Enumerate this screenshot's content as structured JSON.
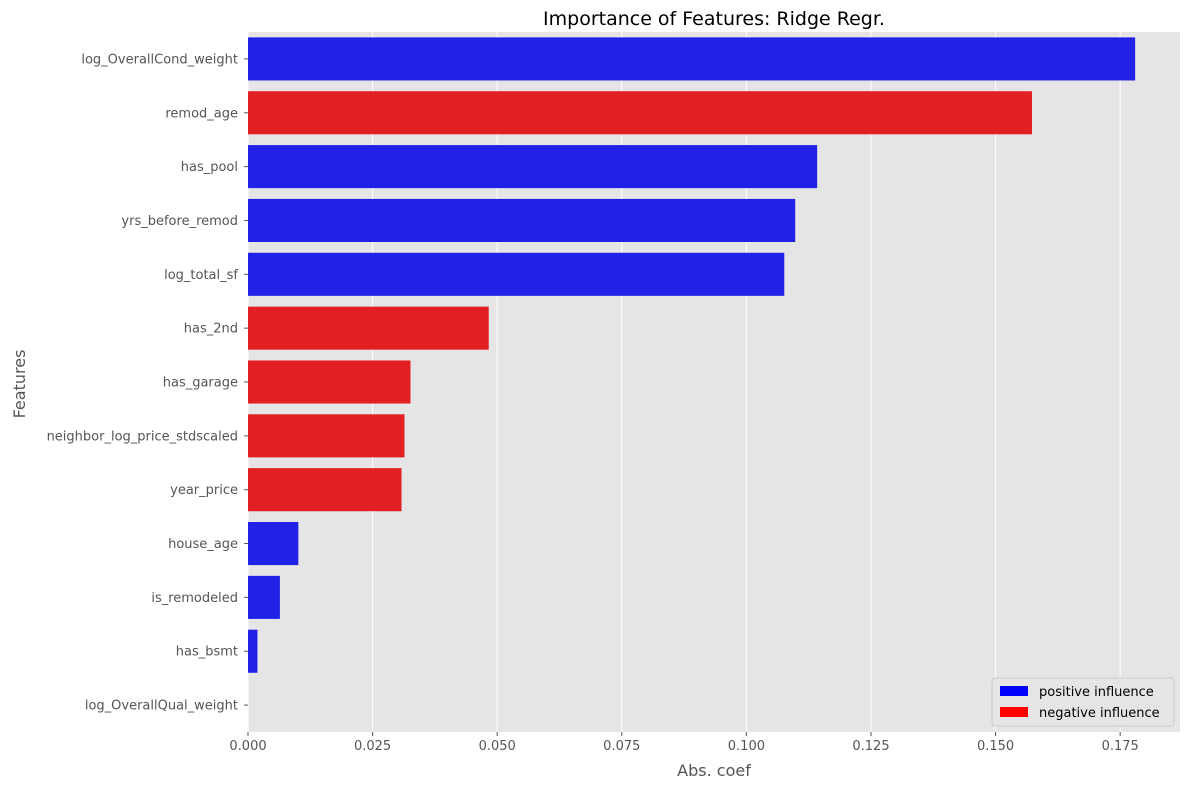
{
  "chart_data": {
    "type": "bar",
    "orientation": "horizontal",
    "title": "Importance of Features: Ridge Regr.",
    "xlabel": "Abs. coef",
    "ylabel": "Features",
    "xlim": [
      0,
      0.187
    ],
    "xticks": [
      "0.000",
      "0.025",
      "0.050",
      "0.075",
      "0.100",
      "0.125",
      "0.150",
      "0.175"
    ],
    "grid": true,
    "legend_position": "lower-right",
    "colors": {
      "positive": "#2222e6",
      "negative": "#e21f22",
      "background": "#e5e5e5",
      "grid": "#ffffff"
    },
    "legend": [
      {
        "label": "positive influence",
        "color": "#0000ff"
      },
      {
        "label": "negative influence",
        "color": "#ff0000"
      }
    ],
    "bars": [
      {
        "feature": "log_OverallCond_weight",
        "value": 0.178,
        "influence": "positive"
      },
      {
        "feature": "remod_age",
        "value": 0.1573,
        "influence": "negative"
      },
      {
        "feature": "has_pool",
        "value": 0.1142,
        "influence": "positive"
      },
      {
        "feature": "yrs_before_remod",
        "value": 0.1098,
        "influence": "positive"
      },
      {
        "feature": "log_total_sf",
        "value": 0.1076,
        "influence": "positive"
      },
      {
        "feature": "has_2nd",
        "value": 0.0483,
        "influence": "negative"
      },
      {
        "feature": "has_garage",
        "value": 0.0326,
        "influence": "negative"
      },
      {
        "feature": "neighbor_log_price_stdscaled",
        "value": 0.0314,
        "influence": "negative"
      },
      {
        "feature": "year_price",
        "value": 0.0308,
        "influence": "negative"
      },
      {
        "feature": "house_age",
        "value": 0.0101,
        "influence": "positive"
      },
      {
        "feature": "is_remodeled",
        "value": 0.0064,
        "influence": "positive"
      },
      {
        "feature": "has_bsmt",
        "value": 0.0019,
        "influence": "positive"
      },
      {
        "feature": "log_OverallQual_weight",
        "value": 0.0,
        "influence": "positive"
      }
    ]
  }
}
